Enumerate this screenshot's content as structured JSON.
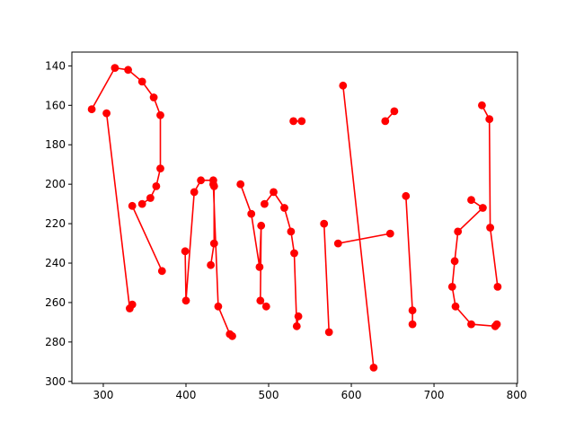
{
  "chart_data": {
    "type": "line",
    "title": "",
    "xlabel": "",
    "ylabel": "",
    "xlim": [
      262,
      801
    ],
    "ylim": [
      301,
      133
    ],
    "y_inverted": true,
    "grid": false,
    "x_ticks": [
      300,
      400,
      500,
      600,
      700,
      800
    ],
    "y_ticks": [
      140,
      160,
      180,
      200,
      220,
      240,
      260,
      280,
      300
    ],
    "series_color": "#ff0000",
    "marker": "circle",
    "series": [
      {
        "points": [
          [
            286,
            162
          ],
          [
            314,
            141
          ],
          [
            330,
            142
          ],
          [
            347,
            148
          ],
          [
            361,
            156
          ],
          [
            369,
            165
          ],
          [
            369,
            192
          ],
          [
            364,
            201
          ],
          [
            357,
            207
          ],
          [
            347,
            210
          ]
        ]
      },
      {
        "points": [
          [
            304,
            164
          ],
          [
            332,
            263
          ],
          [
            335,
            261
          ]
        ]
      },
      {
        "points": [
          [
            335,
            211
          ],
          [
            371,
            244
          ]
        ]
      },
      {
        "points": [
          [
            399,
            234
          ],
          [
            400,
            259
          ],
          [
            410,
            204
          ],
          [
            418,
            198
          ],
          [
            433,
            198
          ],
          [
            434,
            201
          ],
          [
            434,
            230
          ],
          [
            430,
            241
          ]
        ]
      },
      {
        "points": [
          [
            433,
            200
          ],
          [
            439,
            262
          ],
          [
            453,
            276
          ],
          [
            456,
            277
          ]
        ]
      },
      {
        "points": [
          [
            466,
            200
          ],
          [
            479,
            215
          ],
          [
            489,
            242
          ],
          [
            491,
            221
          ],
          [
            490,
            259
          ],
          [
            497,
            262
          ]
        ]
      },
      {
        "points": [
          [
            495,
            210
          ],
          [
            506,
            204
          ],
          [
            519,
            212
          ],
          [
            527,
            224
          ],
          [
            531,
            235
          ],
          [
            534,
            272
          ],
          [
            536,
            267
          ]
        ]
      },
      {
        "points": [
          [
            530,
            168
          ],
          [
            540,
            168
          ]
        ]
      },
      {
        "points": [
          [
            567,
            220
          ],
          [
            573,
            275
          ]
        ]
      },
      {
        "points": [
          [
            590,
            150
          ],
          [
            627,
            293
          ]
        ]
      },
      {
        "points": [
          [
            584,
            230
          ],
          [
            647,
            225
          ]
        ]
      },
      {
        "points": [
          [
            641,
            168
          ],
          [
            652,
            163
          ]
        ]
      },
      {
        "points": [
          [
            666,
            206
          ],
          [
            674,
            264
          ],
          [
            674,
            271
          ]
        ]
      },
      {
        "points": [
          [
            758,
            160
          ],
          [
            767,
            167
          ],
          [
            768,
            222
          ],
          [
            777,
            252
          ]
        ]
      },
      {
        "points": [
          [
            745,
            208
          ],
          [
            759,
            212
          ],
          [
            729,
            224
          ],
          [
            725,
            239
          ],
          [
            722,
            252
          ],
          [
            726,
            262
          ],
          [
            745,
            271
          ],
          [
            774,
            272
          ],
          [
            776,
            271
          ]
        ]
      }
    ]
  }
}
